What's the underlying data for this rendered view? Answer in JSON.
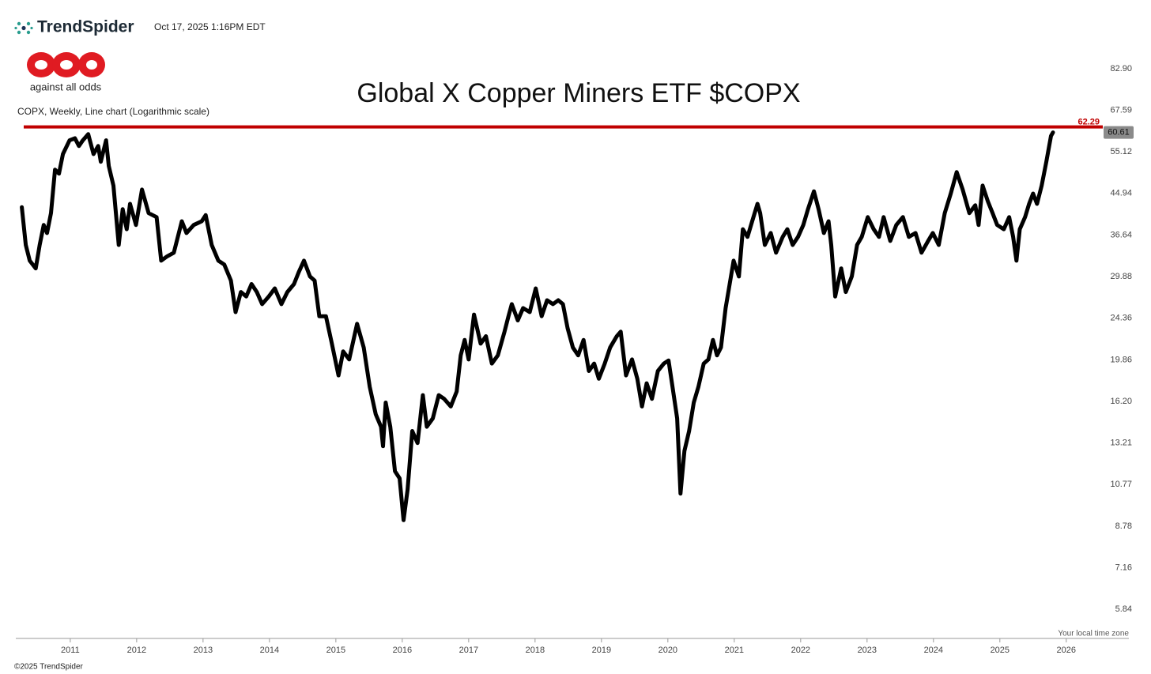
{
  "header": {
    "brand": "TrendSpider",
    "timestamp": "Oct 17, 2025 1:16PM EDT",
    "logo_tagline": "against all odds"
  },
  "footer": {
    "copyright": "©2025 TrendSpider",
    "timezone_note": "Your local time zone"
  },
  "chart_data": {
    "type": "line",
    "title": "Global X Copper Miners ETF $COPX",
    "subtitle": "COPX, Weekly, Line chart (Logarithmic scale)",
    "log_scale": true,
    "color": "#000000",
    "x": [
      2010.27,
      2010.33,
      2010.39,
      2010.48,
      2010.54,
      2010.6,
      2010.65,
      2010.71,
      2010.77,
      2010.83,
      2010.89,
      2010.99,
      2011.07,
      2011.13,
      2011.19,
      2011.27,
      2011.35,
      2011.42,
      2011.46,
      2011.54,
      2011.58,
      2011.65,
      2011.73,
      2011.79,
      2011.85,
      2011.9,
      2011.99,
      2012.08,
      2012.18,
      2012.3,
      2012.37,
      2012.46,
      2012.56,
      2012.68,
      2012.75,
      2012.86,
      2012.98,
      2013.04,
      2013.13,
      2013.23,
      2013.32,
      2013.42,
      2013.49,
      2013.57,
      2013.65,
      2013.73,
      2013.81,
      2013.89,
      2013.99,
      2014.08,
      2014.18,
      2014.27,
      2014.37,
      2014.44,
      2014.52,
      2014.61,
      2014.68,
      2014.75,
      2014.85,
      2014.94,
      2015.04,
      2015.11,
      2015.2,
      2015.32,
      2015.42,
      2015.51,
      2015.6,
      2015.68,
      2015.71,
      2015.75,
      2015.82,
      2015.89,
      2015.96,
      2016.02,
      2016.08,
      2016.15,
      2016.23,
      2016.31,
      2016.37,
      2016.46,
      2016.55,
      2016.63,
      2016.73,
      2016.82,
      2016.88,
      2016.94,
      2017.0,
      2017.08,
      2017.18,
      2017.26,
      2017.35,
      2017.44,
      2017.54,
      2017.6,
      2017.65,
      2017.74,
      2017.82,
      2017.92,
      2018.01,
      2018.1,
      2018.18,
      2018.27,
      2018.35,
      2018.42,
      2018.49,
      2018.57,
      2018.65,
      2018.73,
      2018.81,
      2018.89,
      2018.96,
      2019.05,
      2019.13,
      2019.23,
      2019.29,
      2019.37,
      2019.46,
      2019.54,
      2019.61,
      2019.68,
      2019.76,
      2019.85,
      2019.94,
      2020.01,
      2020.07,
      2020.14,
      2020.19,
      2020.25,
      2020.32,
      2020.39,
      2020.46,
      2020.54,
      2020.61,
      2020.68,
      2020.74,
      2020.8,
      2020.87,
      2020.92,
      2020.99,
      2021.07,
      2021.13,
      2021.2,
      2021.27,
      2021.35,
      2021.39,
      2021.46,
      2021.55,
      2021.63,
      2021.73,
      2021.8,
      2021.88,
      2021.96,
      2022.04,
      2022.11,
      2022.2,
      2022.27,
      2022.35,
      2022.42,
      2022.46,
      2022.52,
      2022.61,
      2022.68,
      2022.77,
      2022.85,
      2022.92,
      2023.01,
      2023.1,
      2023.18,
      2023.25,
      2023.35,
      2023.44,
      2023.54,
      2023.63,
      2023.73,
      2023.82,
      2023.92,
      2023.99,
      2024.08,
      2024.17,
      2024.26,
      2024.35,
      2024.44,
      2024.54,
      2024.63,
      2024.68,
      2024.74,
      2024.82,
      2024.89,
      2024.96,
      2025.06,
      2025.14,
      2025.2,
      2025.25,
      2025.3,
      2025.38,
      2025.44,
      2025.5,
      2025.56,
      2025.63,
      2025.7,
      2025.77,
      2025.8
    ],
    "values": [
      42.0,
      34.9,
      32.3,
      31.1,
      34.9,
      38.5,
      37.0,
      40.8,
      50.5,
      49.5,
      54.5,
      58.3,
      58.9,
      56.7,
      58.3,
      60.1,
      54.5,
      56.7,
      52.5,
      58.3,
      51.4,
      46.7,
      34.9,
      41.6,
      37.7,
      42.7,
      38.5,
      45.8,
      40.8,
      40.0,
      32.3,
      33.0,
      33.6,
      39.2,
      37.0,
      38.5,
      39.2,
      40.4,
      34.9,
      32.3,
      31.7,
      29.3,
      25.1,
      27.7,
      27.1,
      28.8,
      27.7,
      26.1,
      27.1,
      28.2,
      26.1,
      27.7,
      28.8,
      30.5,
      32.3,
      29.9,
      29.3,
      24.6,
      24.6,
      21.5,
      18.4,
      20.7,
      19.9,
      23.7,
      21.1,
      17.4,
      15.2,
      14.3,
      13.0,
      16.1,
      14.3,
      11.5,
      11.1,
      9.04,
      10.5,
      14.0,
      13.2,
      16.7,
      14.3,
      14.9,
      16.7,
      16.4,
      15.8,
      17.0,
      20.3,
      21.9,
      19.9,
      24.8,
      21.5,
      22.3,
      19.5,
      20.3,
      22.8,
      24.6,
      26.1,
      24.1,
      25.6,
      25.1,
      28.2,
      24.6,
      26.6,
      26.1,
      26.6,
      26.1,
      23.2,
      21.1,
      20.3,
      21.9,
      18.8,
      19.5,
      18.1,
      19.5,
      21.1,
      22.3,
      22.8,
      18.4,
      19.9,
      18.1,
      15.8,
      17.7,
      16.4,
      18.8,
      19.5,
      19.8,
      17.4,
      14.9,
      10.3,
      12.7,
      14.0,
      16.1,
      17.4,
      19.5,
      19.9,
      21.9,
      20.3,
      21.1,
      25.6,
      28.2,
      32.3,
      29.9,
      37.7,
      36.3,
      39.2,
      42.7,
      40.8,
      34.9,
      37.0,
      33.6,
      36.3,
      37.7,
      34.9,
      36.3,
      38.5,
      41.6,
      45.4,
      41.6,
      37.0,
      39.2,
      34.9,
      27.1,
      31.1,
      27.7,
      29.9,
      34.9,
      36.3,
      40.0,
      37.7,
      36.3,
      40.0,
      35.6,
      38.5,
      40.0,
      36.3,
      37.0,
      33.6,
      35.6,
      37.0,
      34.9,
      40.8,
      44.9,
      49.9,
      45.8,
      40.8,
      42.4,
      38.5,
      46.7,
      43.2,
      40.8,
      38.5,
      37.7,
      40.0,
      36.3,
      32.3,
      37.7,
      40.0,
      42.7,
      44.9,
      42.7,
      46.7,
      52.5,
      59.6,
      60.61
    ],
    "xlim": [
      2010.18,
      2026.55
    ],
    "xticks": [
      2011,
      2012,
      2013,
      2014,
      2015,
      2016,
      2017,
      2018,
      2019,
      2020,
      2021,
      2022,
      2023,
      2024,
      2025,
      2026
    ],
    "ylim": [
      5.06,
      92.0
    ],
    "yticks": [
      {
        "value": 82.9,
        "label": "82.90"
      },
      67.59,
      55.12,
      44.94,
      36.64,
      29.88,
      24.36,
      19.86,
      {
        "value": 16.2,
        "label": "16.20"
      },
      13.21,
      10.77,
      8.78,
      7.16,
      5.84
    ],
    "hline": {
      "value": 62.29,
      "color": "#c00000"
    }
  }
}
